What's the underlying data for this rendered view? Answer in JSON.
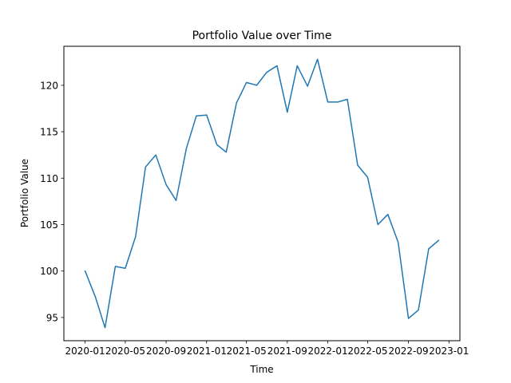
{
  "chart_data": {
    "type": "line",
    "title": "Portfolio Value over Time",
    "xlabel": "Time",
    "ylabel": "Portfolio Value",
    "x": [
      "2020-01-01",
      "2020-02-01",
      "2020-03-01",
      "2020-04-01",
      "2020-05-01",
      "2020-06-01",
      "2020-07-01",
      "2020-08-01",
      "2020-09-01",
      "2020-10-01",
      "2020-11-01",
      "2020-12-01",
      "2021-01-01",
      "2021-02-01",
      "2021-03-01",
      "2021-04-01",
      "2021-05-01",
      "2021-06-01",
      "2021-07-01",
      "2021-08-01",
      "2021-09-01",
      "2021-10-01",
      "2021-11-01",
      "2021-12-01",
      "2022-01-01",
      "2022-02-01",
      "2022-03-01",
      "2022-04-01",
      "2022-05-01",
      "2022-06-01",
      "2022-07-01",
      "2022-08-01",
      "2022-09-01",
      "2022-10-01",
      "2022-11-01",
      "2022-12-01"
    ],
    "series": [
      {
        "values": [
          100.0,
          97.2,
          93.9,
          100.5,
          100.3,
          103.7,
          111.2,
          112.5,
          109.3,
          107.6,
          113.2,
          116.7,
          116.8,
          113.6,
          112.8,
          118.1,
          120.3,
          120.0,
          121.4,
          122.1,
          117.1,
          122.1,
          119.9,
          122.8,
          118.2,
          118.2,
          118.5,
          111.4,
          110.1,
          105.0,
          106.1,
          103.1,
          94.9,
          95.8,
          102.4,
          103.3
        ],
        "color": "#1f77b4"
      }
    ],
    "xlim": [
      "2019-10-29",
      "2023-02-03"
    ],
    "ylim": [
      92.5,
      124.2
    ],
    "x_ticks": [
      "2020-01",
      "2020-05",
      "2020-09",
      "2021-01",
      "2021-05",
      "2021-09",
      "2022-01",
      "2022-05",
      "2022-09",
      "2023-01"
    ],
    "y_ticks": [
      95,
      100,
      105,
      110,
      115,
      120
    ],
    "grid": false,
    "legend": false
  }
}
